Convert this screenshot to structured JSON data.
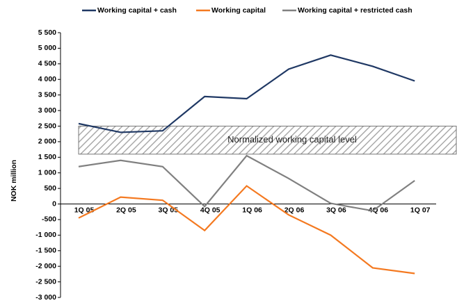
{
  "chart_data": {
    "type": "line",
    "y_label": "NOK million",
    "categories": [
      "1Q 05",
      "2Q 05",
      "3Q 05",
      "4Q 05",
      "1Q 06",
      "2Q 06",
      "3Q 06",
      "4Q 06",
      "1Q 07"
    ],
    "series": [
      {
        "name": "Working capital + cash",
        "color": "#1f3864",
        "values": [
          2580,
          2300,
          2350,
          3450,
          3380,
          4330,
          4780,
          4420,
          3950
        ]
      },
      {
        "name": "Working capital",
        "color": "#f47920",
        "values": [
          -450,
          220,
          120,
          -850,
          580,
          -350,
          -1000,
          -2050,
          -2230
        ]
      },
      {
        "name": "Working capital + restricted cash",
        "color": "#808080",
        "values": [
          1200,
          1400,
          1200,
          -80,
          1550,
          820,
          20,
          -220,
          750
        ]
      }
    ],
    "annotations": [
      {
        "text": "Normalized working capital level",
        "ymin": 1600,
        "ymax": 2500
      }
    ],
    "ylim": [
      -3000,
      5500
    ],
    "yticks": [
      {
        "value": -3000,
        "label": "-3 000"
      },
      {
        "value": -2500,
        "label": "-2 500"
      },
      {
        "value": -2000,
        "label": "-2 000"
      },
      {
        "value": -1500,
        "label": "-1 500"
      },
      {
        "value": -1000,
        "label": "-1 000"
      },
      -500,
      0,
      500,
      {
        "value": 1000,
        "label": "1 000"
      },
      {
        "value": 1500,
        "label": "1 500"
      },
      {
        "value": 2000,
        "label": "2 000"
      },
      {
        "value": 2500,
        "label": "2 500"
      },
      {
        "value": 3000,
        "label": "3 000"
      },
      {
        "value": 3500,
        "label": "3 500"
      },
      {
        "value": 4000,
        "label": "4 000"
      },
      {
        "value": 4500,
        "label": "4 500"
      },
      {
        "value": 5000,
        "label": "5 000"
      },
      {
        "value": 5500,
        "label": "5 500"
      }
    ],
    "legend": "top",
    "grid": false
  }
}
